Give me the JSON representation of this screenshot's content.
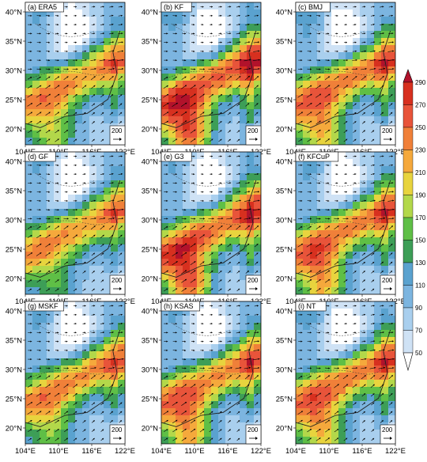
{
  "figure": {
    "panels": [
      {
        "label": "(a) ERA5",
        "intensity": 0.62,
        "south_hotspot": 0.55,
        "northwest_strength": 0.42
      },
      {
        "label": "(b) KF",
        "intensity": 1.0,
        "south_hotspot": 1.0,
        "northwest_strength": 0.48
      },
      {
        "label": "(c) BMJ",
        "intensity": 0.78,
        "south_hotspot": 0.72,
        "northwest_strength": 0.5
      },
      {
        "label": "(d) GF",
        "intensity": 0.6,
        "south_hotspot": 0.38,
        "northwest_strength": 0.42
      },
      {
        "label": "(e) G3",
        "intensity": 0.92,
        "south_hotspot": 0.98,
        "northwest_strength": 0.4
      },
      {
        "label": "(f) KFCuP",
        "intensity": 0.78,
        "south_hotspot": 0.78,
        "northwest_strength": 0.45
      },
      {
        "label": "(g) MSKF",
        "intensity": 0.68,
        "south_hotspot": 0.48,
        "northwest_strength": 0.45
      },
      {
        "label": "(h) KSAS",
        "intensity": 0.72,
        "south_hotspot": 0.8,
        "northwest_strength": 0.42
      },
      {
        "label": "(i) NT",
        "intensity": 0.8,
        "south_hotspot": 0.72,
        "northwest_strength": 0.48
      }
    ],
    "lat_labels": [
      "40°N",
      "35°N",
      "30°N",
      "25°N",
      "20°N"
    ],
    "lon_labels": [
      "104°E",
      "110°E",
      "116°E",
      "122°E"
    ],
    "reference_vector": "200",
    "colorbar": {
      "levels": [
        "290",
        "270",
        "250",
        "230",
        "210",
        "190",
        "170",
        "150",
        "130",
        "110",
        "90",
        "70",
        "50"
      ],
      "colors": [
        "#b2122b",
        "#d7301f",
        "#e8543a",
        "#f08039",
        "#f5a93c",
        "#e8d43e",
        "#b3d84a",
        "#5fbf46",
        "#3d9e57",
        "#5aa2cf",
        "#7cb5e0",
        "#a9cfee",
        "#cfe2f5",
        "#ffffff"
      ]
    }
  }
}
